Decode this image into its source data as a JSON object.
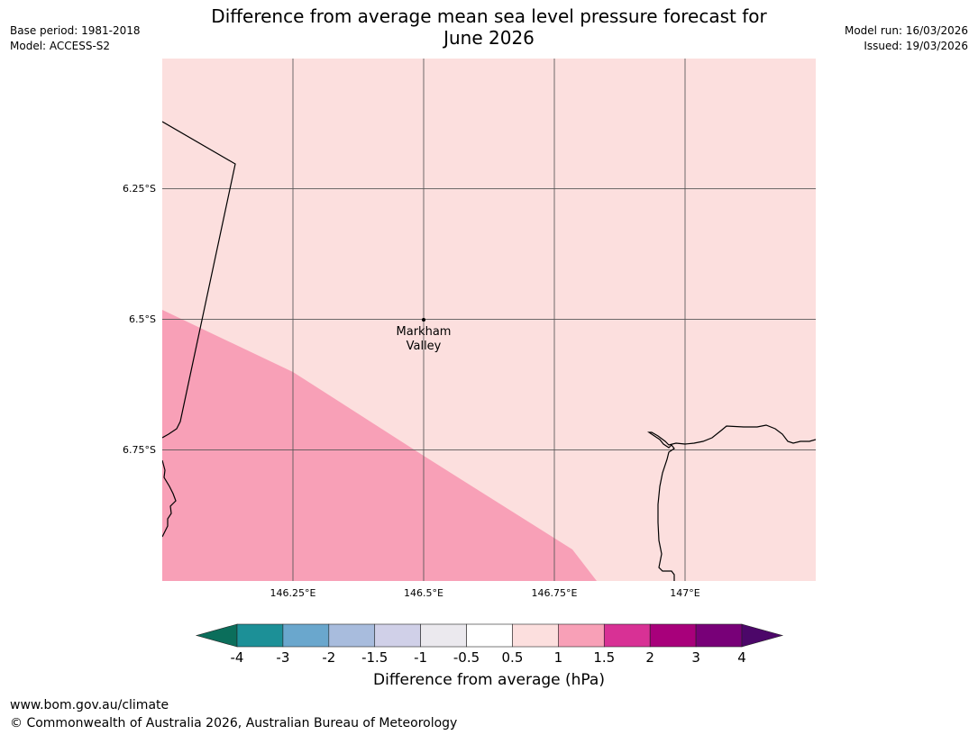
{
  "title": {
    "line1": "Difference from average mean sea level pressure forecast for",
    "line2": "June 2026"
  },
  "meta_left": {
    "base_period": "Base period: 1981-2018",
    "model": "Model: ACCESS-S2"
  },
  "meta_right": {
    "model_run": "Model run: 16/03/2026",
    "issued": "Issued: 19/03/2026"
  },
  "map": {
    "background_color": "#fcdfde",
    "anomaly_color": "#f8a0b7",
    "gridline_color": "#555555",
    "coastline_color": "#000000",
    "lat_labels": [
      "6.25°S",
      "6.5°S",
      "6.75°S"
    ],
    "lon_labels": [
      "146.25°E",
      "146.5°E",
      "146.75°E",
      "147°E"
    ],
    "location": {
      "name_line1": "Markham",
      "name_line2": "Valley"
    }
  },
  "colorbar": {
    "title": "Difference from average (hPa)",
    "tick_labels": [
      "-4",
      "-3",
      "-2",
      "-1.5",
      "-1",
      "-0.5",
      "0.5",
      "1",
      "1.5",
      "2",
      "3",
      "4"
    ],
    "low_extend_color": "#0b6e5b",
    "high_extend_color": "#4c0769",
    "segment_colors": [
      "#1c9097",
      "#6aa7cd",
      "#a8bcdd",
      "#d0d0e8",
      "#ebe9ee",
      "#ffffff",
      "#fcdfde",
      "#f8a0b7",
      "#d83195",
      "#a8007b",
      "#780078"
    ]
  },
  "footer": {
    "url": "www.bom.gov.au/climate",
    "copyright": "© Commonwealth of Australia 2026, Australian Bureau of Meteorology"
  }
}
